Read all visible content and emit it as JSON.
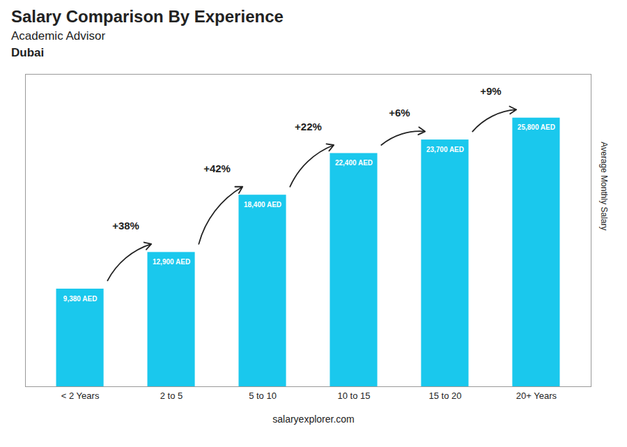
{
  "chart_data": {
    "type": "bar",
    "title": "Salary Comparison By Experience",
    "subtitle": [
      "Academic Advisor",
      "Dubai"
    ],
    "caption": "salaryexplorer.com",
    "ylabel": "Average Monthly Salary",
    "categories": [
      "< 2 Years",
      "2 to 5",
      "5 to 10",
      "10 to 15",
      "15 to 20",
      "20+ Years"
    ],
    "values": [
      9380,
      12900,
      18400,
      22400,
      23700,
      25800
    ],
    "value_labels": [
      "9,380 AED",
      "12,900 AED",
      "18,400 AED",
      "22,400 AED",
      "23,700 AED",
      "25,800 AED"
    ],
    "data_labels": true,
    "pct_changes": [
      "+38%",
      "+42%",
      "+22%",
      "+6%",
      "+9%"
    ],
    "color": "#1AC8ED",
    "ylim": [
      0,
      30000
    ],
    "tick_labels": "x",
    "grid": false
  }
}
